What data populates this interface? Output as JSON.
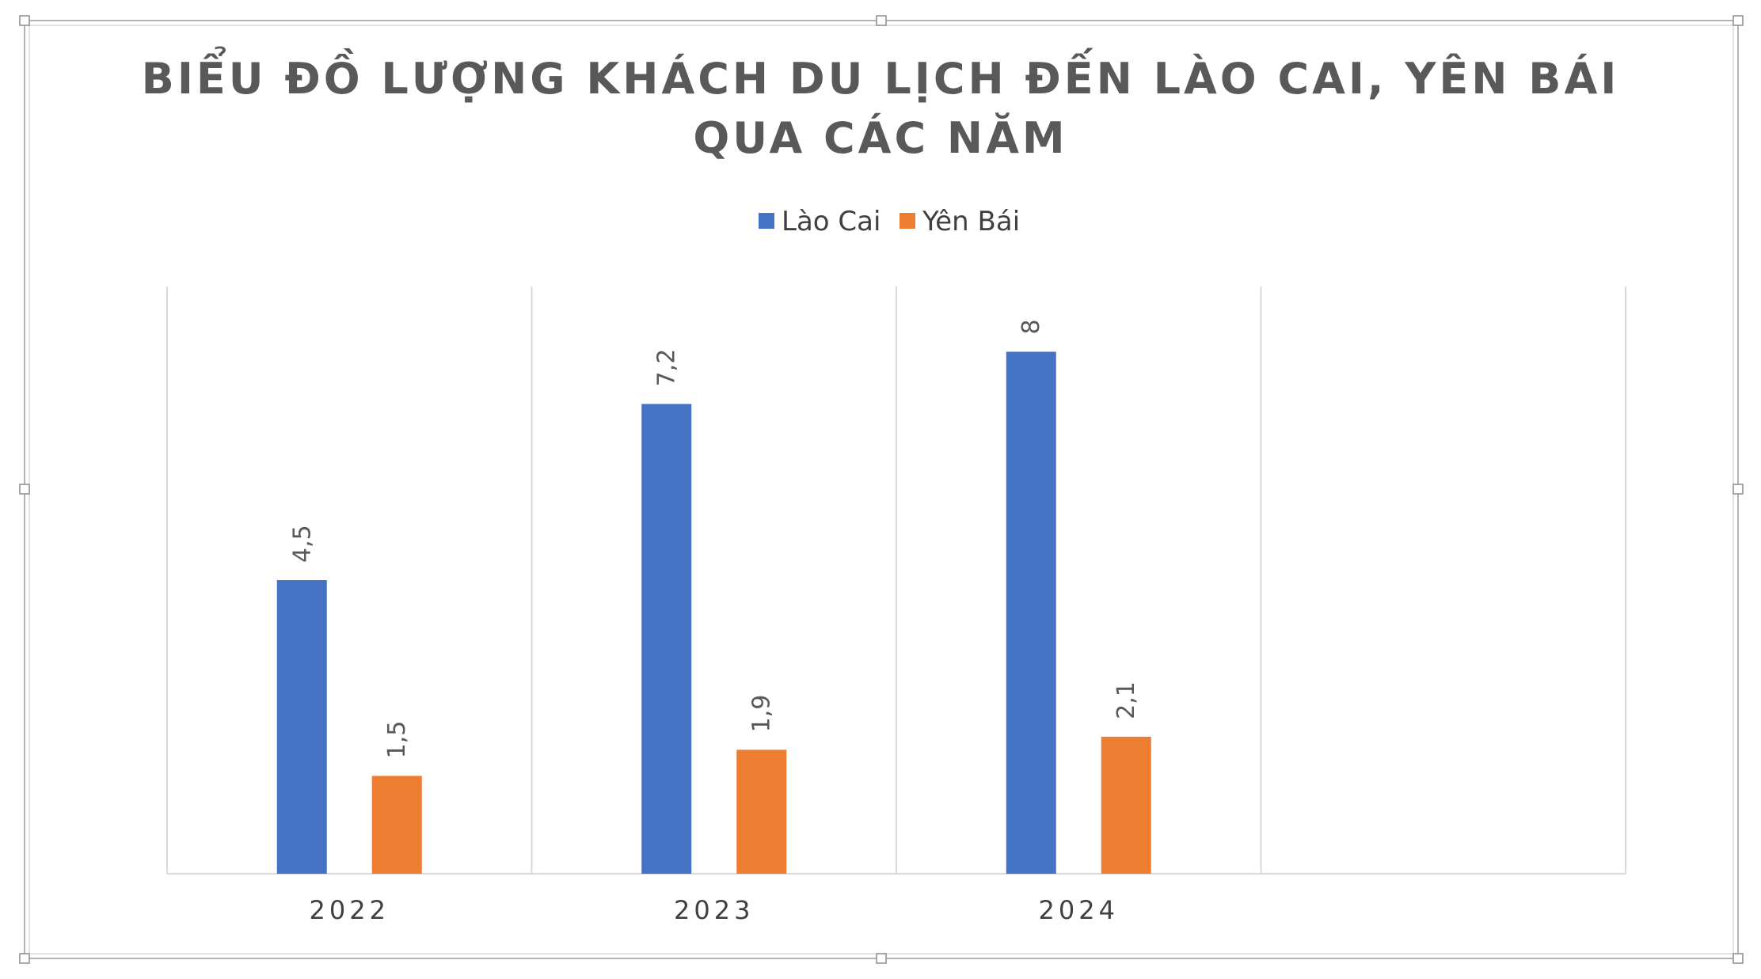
{
  "chart_data": {
    "type": "bar",
    "title_line1": "BIỂU ĐỒ LƯỢNG KHÁCH DU LỊCH ĐẾN LÀO CAI, YÊN BÁI",
    "title_line2": "QUA CÁC NĂM",
    "xlabel": "",
    "ylabel": "",
    "categories": [
      "2022",
      "2023",
      "2024",
      ""
    ],
    "series": [
      {
        "name": "Lào Cai",
        "color": "#4472C4",
        "values": [
          4.5,
          7.2,
          8,
          null
        ],
        "labels": [
          "4,5",
          "7,2",
          "8",
          ""
        ]
      },
      {
        "name": "Yên Bái",
        "color": "#ED7D31",
        "values": [
          1.5,
          1.9,
          2.1,
          null
        ],
        "labels": [
          "1,5",
          "1,9",
          "2,1",
          ""
        ]
      }
    ],
    "ylim": [
      0,
      9
    ],
    "grid": "vertical",
    "legend": "top-center",
    "data_labels": "rotated-vertical"
  }
}
